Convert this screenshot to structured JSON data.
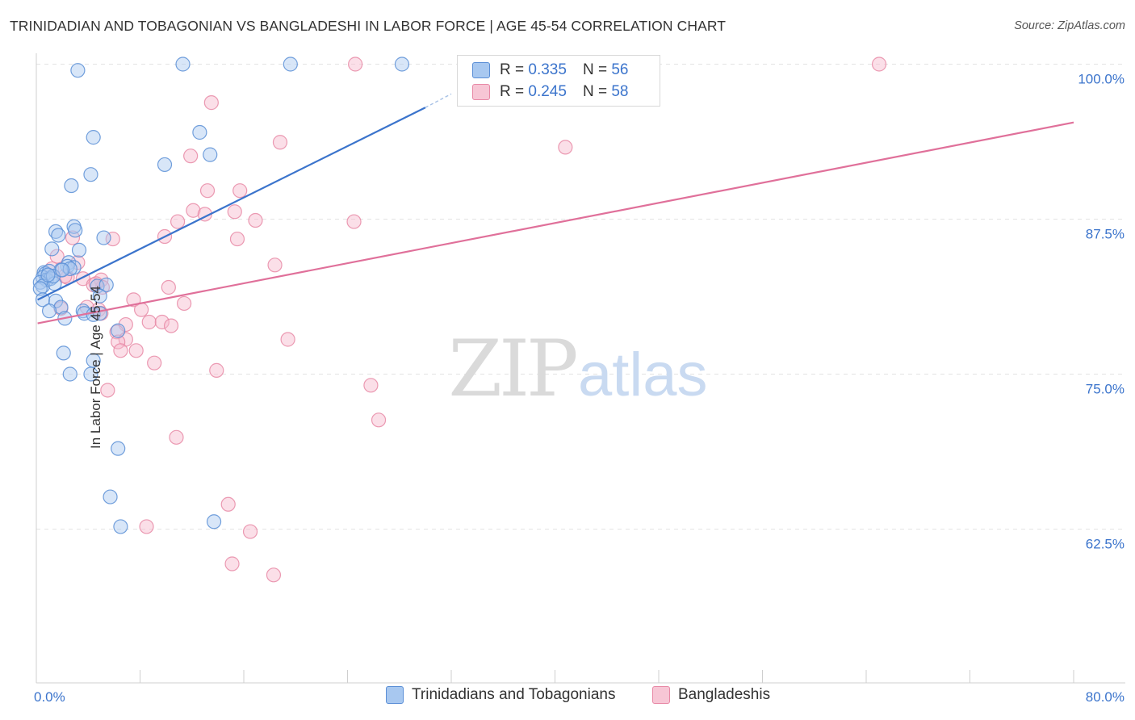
{
  "title": "TRINIDADIAN AND TOBAGONIAN VS BANGLADESHI IN LABOR FORCE | AGE 45-54 CORRELATION CHART",
  "source": "Source: ZipAtlas.com",
  "watermark": {
    "part1": "ZIP",
    "part2": "atlas"
  },
  "legend_top": [
    {
      "r_label": "R =",
      "r_value": "0.335",
      "n_label": "N =",
      "n_value": "56"
    },
    {
      "r_label": "R =",
      "r_value": "0.245",
      "n_label": "N =",
      "n_value": "58"
    }
  ],
  "legend_bottom": [
    {
      "label": "Trinidadians and Tobagonians"
    },
    {
      "label": "Bangladeshis"
    }
  ],
  "colors": {
    "blue_fill": "#a8c8f0",
    "blue_stroke": "#5b8fd6",
    "blue_line": "#3b74cc",
    "pink_fill": "#f7b8cb",
    "pink_stroke": "#e889a6",
    "pink_line": "#e0709a",
    "grid": "#e3e3e3",
    "tick_label": "#3b74cc"
  },
  "chart_data": {
    "type": "scatter",
    "title": "TRINIDADIAN AND TOBAGONIAN VS BANGLADESHI IN LABOR FORCE | AGE 45-54 CORRELATION CHART",
    "xlabel": "",
    "ylabel": "In Labor Force | Age 45-54",
    "xlim": [
      0,
      80
    ],
    "ylim": [
      50,
      101
    ],
    "x_tick_labels": [
      "0.0%",
      "80.0%"
    ],
    "y_ticks": [
      62.5,
      75.0,
      87.5,
      100.0
    ],
    "y_tick_labels": [
      "62.5%",
      "75.0%",
      "87.5%",
      "100.0%"
    ],
    "series": [
      {
        "name": "Trinidadians and Tobagonians",
        "color": "blue",
        "r": 0.335,
        "n": 56,
        "trend": {
          "x0": 0.1,
          "y0": 81.0,
          "x1": 30.0,
          "y1": 96.5,
          "dash_to_x": 32.0,
          "dash_to_y": 97.6
        },
        "points": [
          [
            3.2,
            99.5
          ],
          [
            11.3,
            100.0
          ],
          [
            19.6,
            100.0
          ],
          [
            28.2,
            100.0
          ],
          [
            4.4,
            94.1
          ],
          [
            12.6,
            94.5
          ],
          [
            13.4,
            92.7
          ],
          [
            9.9,
            91.9
          ],
          [
            4.2,
            91.1
          ],
          [
            2.7,
            90.2
          ],
          [
            2.9,
            86.9
          ],
          [
            3.0,
            86.6
          ],
          [
            1.5,
            86.5
          ],
          [
            1.7,
            86.2
          ],
          [
            5.2,
            86.0
          ],
          [
            1.2,
            85.1
          ],
          [
            3.3,
            85.0
          ],
          [
            2.5,
            84.0
          ],
          [
            2.4,
            83.7
          ],
          [
            1.9,
            83.4
          ],
          [
            0.6,
            83.2
          ],
          [
            0.7,
            83.1
          ],
          [
            1.0,
            83.3
          ],
          [
            0.5,
            82.8
          ],
          [
            0.8,
            82.6
          ],
          [
            1.1,
            82.7
          ],
          [
            0.3,
            82.4
          ],
          [
            0.5,
            82.1
          ],
          [
            0.3,
            81.9
          ],
          [
            1.4,
            82.3
          ],
          [
            2.9,
            83.6
          ],
          [
            4.7,
            82.1
          ],
          [
            5.4,
            82.2
          ],
          [
            4.9,
            81.3
          ],
          [
            0.5,
            81.0
          ],
          [
            1.5,
            80.9
          ],
          [
            1.9,
            80.4
          ],
          [
            1.0,
            80.1
          ],
          [
            3.6,
            80.1
          ],
          [
            3.7,
            79.9
          ],
          [
            4.4,
            79.8
          ],
          [
            4.9,
            79.9
          ],
          [
            2.2,
            79.5
          ],
          [
            6.3,
            78.5
          ],
          [
            2.1,
            76.7
          ],
          [
            4.4,
            76.1
          ],
          [
            2.6,
            75.0
          ],
          [
            4.2,
            75.0
          ],
          [
            6.3,
            69.0
          ],
          [
            5.7,
            65.1
          ],
          [
            6.5,
            62.7
          ],
          [
            13.7,
            63.1
          ],
          [
            2.6,
            83.5
          ],
          [
            1.3,
            82.9
          ],
          [
            0.9,
            83.0
          ],
          [
            2.0,
            83.4
          ]
        ]
      },
      {
        "name": "Bangladeshis",
        "color": "pink",
        "r": 0.245,
        "n": 58,
        "trend": {
          "x0": 0.1,
          "y0": 79.1,
          "x1": 80.0,
          "y1": 95.3
        },
        "points": [
          [
            24.6,
            100.0
          ],
          [
            65.0,
            100.0
          ],
          [
            13.5,
            96.9
          ],
          [
            18.8,
            93.7
          ],
          [
            40.8,
            93.3
          ],
          [
            11.9,
            92.6
          ],
          [
            13.2,
            89.8
          ],
          [
            15.7,
            89.8
          ],
          [
            12.1,
            88.2
          ],
          [
            15.3,
            88.1
          ],
          [
            13.0,
            87.9
          ],
          [
            10.9,
            87.3
          ],
          [
            16.9,
            87.4
          ],
          [
            24.5,
            87.3
          ],
          [
            2.8,
            86.0
          ],
          [
            9.9,
            86.1
          ],
          [
            5.9,
            85.9
          ],
          [
            15.5,
            85.9
          ],
          [
            1.6,
            84.5
          ],
          [
            3.2,
            84.0
          ],
          [
            18.4,
            83.8
          ],
          [
            2.4,
            82.8
          ],
          [
            3.6,
            82.7
          ],
          [
            5.0,
            82.6
          ],
          [
            5.1,
            82.0
          ],
          [
            4.4,
            82.2
          ],
          [
            10.2,
            82.0
          ],
          [
            7.5,
            81.0
          ],
          [
            11.4,
            80.7
          ],
          [
            1.9,
            80.3
          ],
          [
            4.8,
            80.2
          ],
          [
            5.0,
            79.9
          ],
          [
            8.1,
            80.2
          ],
          [
            8.7,
            79.2
          ],
          [
            9.7,
            79.2
          ],
          [
            10.4,
            78.9
          ],
          [
            6.9,
            79.0
          ],
          [
            6.2,
            78.4
          ],
          [
            6.9,
            77.8
          ],
          [
            6.3,
            77.6
          ],
          [
            19.4,
            77.8
          ],
          [
            6.5,
            76.9
          ],
          [
            7.7,
            76.9
          ],
          [
            9.1,
            75.9
          ],
          [
            13.9,
            75.3
          ],
          [
            25.8,
            74.1
          ],
          [
            5.5,
            73.7
          ],
          [
            26.4,
            71.3
          ],
          [
            10.8,
            69.9
          ],
          [
            14.8,
            64.5
          ],
          [
            8.5,
            62.7
          ],
          [
            16.5,
            62.3
          ],
          [
            15.1,
            59.7
          ],
          [
            18.3,
            58.8
          ],
          [
            1.2,
            83.5
          ],
          [
            2.2,
            82.9
          ],
          [
            3.9,
            80.4
          ],
          [
            4.6,
            82.3
          ]
        ]
      }
    ]
  }
}
